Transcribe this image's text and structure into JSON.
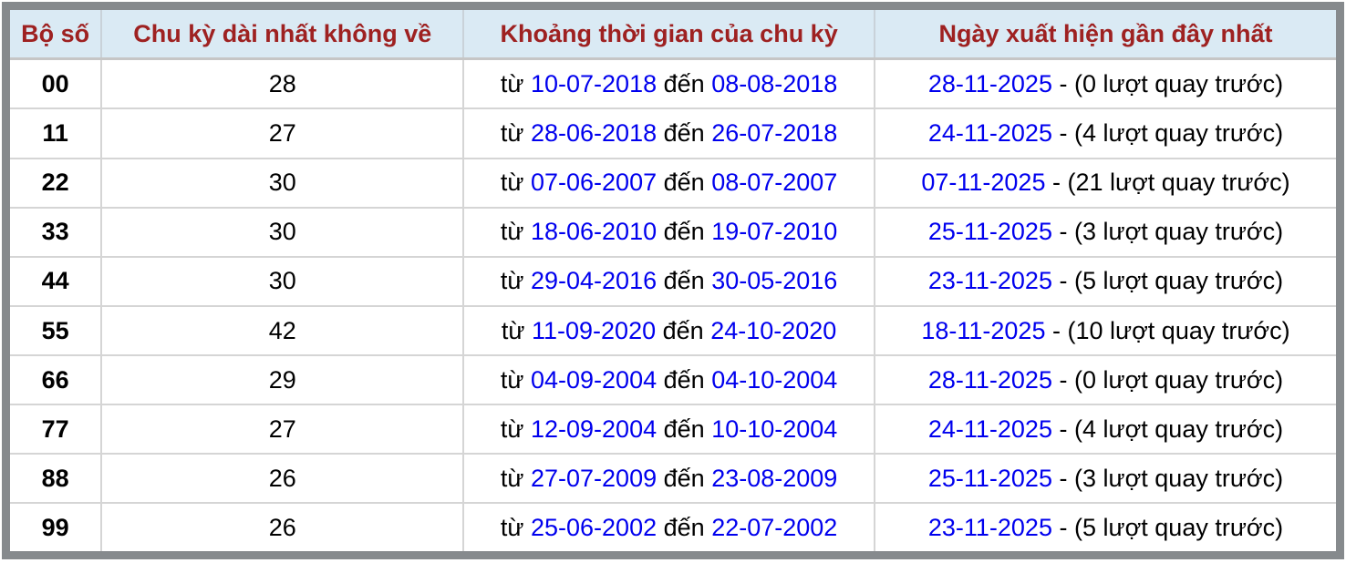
{
  "table": {
    "columns": [
      {
        "label": "Bộ số"
      },
      {
        "label": "Chu kỳ dài nhất không về"
      },
      {
        "label": "Khoảng thời gian của chu kỳ"
      },
      {
        "label": "Ngày xuất hiện gần đây nhất"
      }
    ],
    "labels": {
      "from": "từ",
      "to": "đến",
      "dash": "-"
    },
    "rows": [
      {
        "pair": "00",
        "cycle": "28",
        "from_date": "10-07-2018",
        "to_date": "08-08-2018",
        "last_date": "28-11-2025",
        "note": "(0 lượt quay trước)"
      },
      {
        "pair": "11",
        "cycle": "27",
        "from_date": "28-06-2018",
        "to_date": "26-07-2018",
        "last_date": "24-11-2025",
        "note": "(4 lượt quay trước)"
      },
      {
        "pair": "22",
        "cycle": "30",
        "from_date": "07-06-2007",
        "to_date": "08-07-2007",
        "last_date": "07-11-2025",
        "note": "(21 lượt quay trước)"
      },
      {
        "pair": "33",
        "cycle": "30",
        "from_date": "18-06-2010",
        "to_date": "19-07-2010",
        "last_date": "25-11-2025",
        "note": "(3 lượt quay trước)"
      },
      {
        "pair": "44",
        "cycle": "30",
        "from_date": "29-04-2016",
        "to_date": "30-05-2016",
        "last_date": "23-11-2025",
        "note": "(5 lượt quay trước)"
      },
      {
        "pair": "55",
        "cycle": "42",
        "from_date": "11-09-2020",
        "to_date": "24-10-2020",
        "last_date": "18-11-2025",
        "note": "(10 lượt quay trước)"
      },
      {
        "pair": "66",
        "cycle": "29",
        "from_date": "04-09-2004",
        "to_date": "04-10-2004",
        "last_date": "28-11-2025",
        "note": "(0 lượt quay trước)"
      },
      {
        "pair": "77",
        "cycle": "27",
        "from_date": "12-09-2004",
        "to_date": "10-10-2004",
        "last_date": "24-11-2025",
        "note": "(4 lượt quay trước)"
      },
      {
        "pair": "88",
        "cycle": "26",
        "from_date": "27-07-2009",
        "to_date": "23-08-2009",
        "last_date": "25-11-2025",
        "note": "(3 lượt quay trước)"
      },
      {
        "pair": "99",
        "cycle": "26",
        "from_date": "25-06-2002",
        "to_date": "22-07-2002",
        "last_date": "23-11-2025",
        "note": "(5 lượt quay trước)"
      }
    ],
    "colors": {
      "header_bg": "#daeaf4",
      "header_text": "#9e2121",
      "date_link": "#0000ee",
      "frame": "#868a8d",
      "row_border": "#d5d5d5",
      "header_border": "#c6c6c6"
    }
  }
}
